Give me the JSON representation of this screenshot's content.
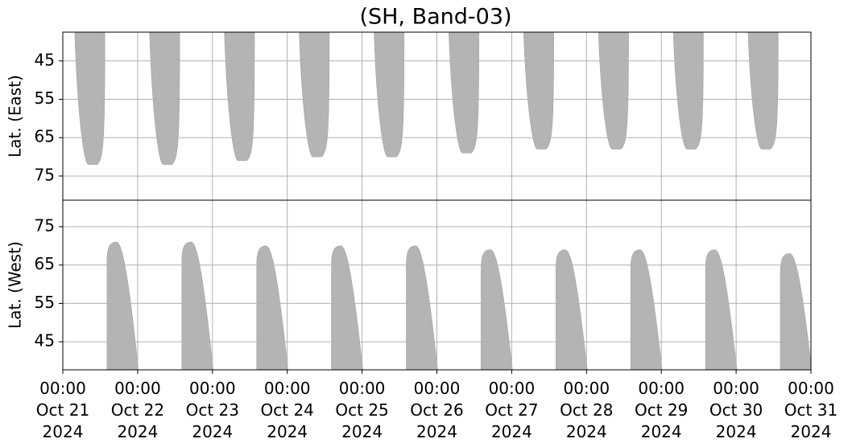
{
  "chart_data": [
    {
      "type": "area",
      "title": "(SH, Band-03)",
      "ylabel": "Lat. (East)",
      "invert_y": true,
      "ylim": [
        37.5,
        81.3
      ],
      "yticks": [
        45,
        55,
        65,
        75
      ],
      "grid": true,
      "color": "#b4b4b4",
      "lobes": {
        "start": [
          "2024-10-21T03:50",
          "2024-10-22T03:50",
          "2024-10-23T03:50",
          "2024-10-24T03:50",
          "2024-10-25T03:50",
          "2024-10-26T03:50",
          "2024-10-27T03:50",
          "2024-10-28T03:50",
          "2024-10-29T03:50",
          "2024-10-30T03:50"
        ],
        "end": [
          "2024-10-21T13:30",
          "2024-10-22T13:30",
          "2024-10-23T13:30",
          "2024-10-24T13:30",
          "2024-10-25T13:30",
          "2024-10-26T13:30",
          "2024-10-27T13:30",
          "2024-10-28T13:30",
          "2024-10-29T13:30",
          "2024-10-30T13:30"
        ],
        "peak": [
          72,
          72,
          71,
          70,
          70,
          69,
          68,
          68,
          68,
          68
        ]
      }
    },
    {
      "type": "area",
      "ylabel": "Lat. (West)",
      "invert_y": false,
      "ylim": [
        37.7,
        81.9
      ],
      "yticks": [
        45,
        55,
        65,
        75
      ],
      "grid": true,
      "color": "#b4b4b4",
      "xlim": [
        "2024-10-21T00:00",
        "2024-10-31T00:00"
      ],
      "xticks": [
        {
          "value": "2024-10-21T00:00",
          "label": "00:00\nOct 21\n2024"
        },
        {
          "value": "2024-10-22T00:00",
          "label": "00:00\nOct 22\n2024"
        },
        {
          "value": "2024-10-23T00:00",
          "label": "00:00\nOct 23\n2024"
        },
        {
          "value": "2024-10-24T00:00",
          "label": "00:00\nOct 24\n2024"
        },
        {
          "value": "2024-10-25T00:00",
          "label": "00:00\nOct 25\n2024"
        },
        {
          "value": "2024-10-26T00:00",
          "label": "00:00\nOct 26\n2024"
        },
        {
          "value": "2024-10-27T00:00",
          "label": "00:00\nOct 27\n2024"
        },
        {
          "value": "2024-10-28T00:00",
          "label": "00:00\nOct 28\n2024"
        },
        {
          "value": "2024-10-29T00:00",
          "label": "00:00\nOct 29\n2024"
        },
        {
          "value": "2024-10-30T00:00",
          "label": "00:00\nOct 30\n2024"
        },
        {
          "value": "2024-10-31T00:00",
          "label": "00:00\nOct 31\n2024"
        }
      ],
      "lobes": {
        "start": [
          "2024-10-21T14:10",
          "2024-10-22T14:10",
          "2024-10-23T14:10",
          "2024-10-24T14:10",
          "2024-10-25T14:10",
          "2024-10-26T14:10",
          "2024-10-27T14:10",
          "2024-10-28T14:10",
          "2024-10-29T14:10",
          "2024-10-30T14:10"
        ],
        "end": [
          "2024-10-22T00:15",
          "2024-10-23T00:15",
          "2024-10-24T00:15",
          "2024-10-25T00:15",
          "2024-10-26T00:15",
          "2024-10-27T00:15",
          "2024-10-28T00:15",
          "2024-10-29T00:15",
          "2024-10-30T00:15",
          "2024-10-31T00:15"
        ],
        "peak": [
          71,
          71,
          70,
          70,
          70,
          69,
          69,
          69,
          69,
          68
        ]
      }
    }
  ]
}
